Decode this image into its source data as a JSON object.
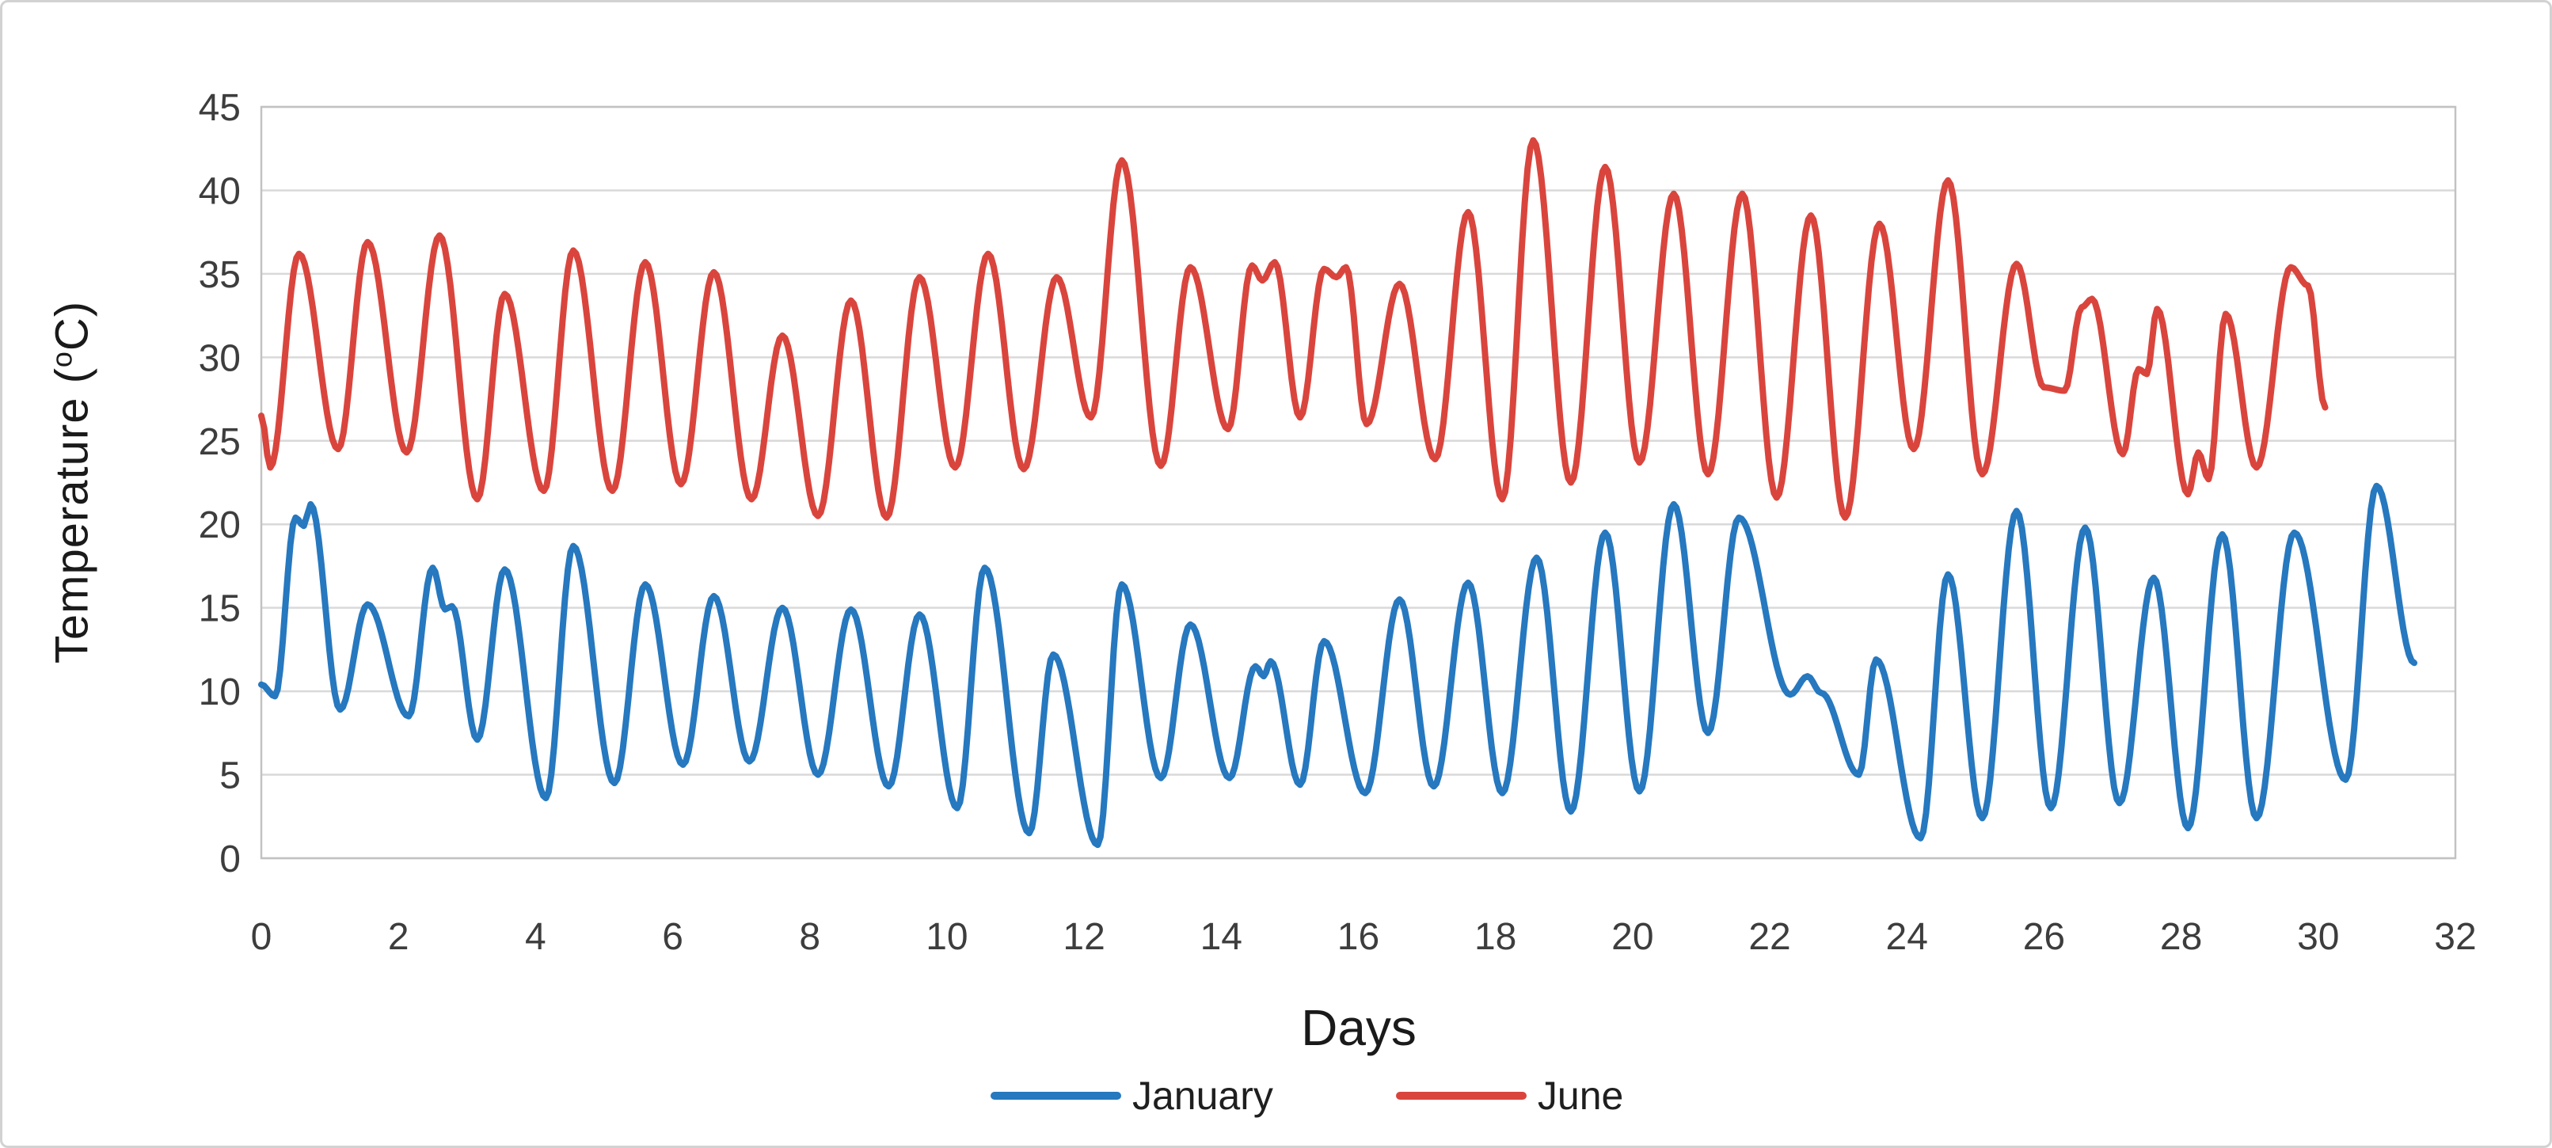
{
  "figure": {
    "background": "#ffffff",
    "border_color": "#d2d2d2",
    "grid_color": "#d9d9d9",
    "plot_border_color": "#c2c2c2",
    "tick_label_color": "#3d3d3d"
  },
  "chart_data": {
    "type": "line",
    "title": "",
    "xlabel": "Days",
    "ylabel": "Temperature (°C)",
    "ylabel_parts": {
      "prefix": "Temperature (",
      "sup": "o",
      "suffix": "C)"
    },
    "xlim": [
      0,
      32
    ],
    "ylim": [
      0,
      45
    ],
    "xticks": [
      0,
      2,
      4,
      6,
      8,
      10,
      12,
      14,
      16,
      18,
      20,
      22,
      24,
      26,
      28,
      30,
      32
    ],
    "yticks": [
      0,
      5,
      10,
      15,
      20,
      25,
      30,
      35,
      40,
      45
    ],
    "grid": "horizontal gridlines only",
    "legend_position": "bottom-center",
    "series": [
      {
        "name": "January",
        "color": "#2678bf",
        "points": [
          [
            0,
            10.4
          ],
          [
            0.2,
            9.7
          ],
          [
            0.5,
            20.4
          ],
          [
            0.62,
            19.9
          ],
          [
            0.72,
            21.2
          ],
          [
            1.15,
            8.9
          ],
          [
            1.55,
            15.2
          ],
          [
            2.15,
            8.5
          ],
          [
            2.5,
            17.4
          ],
          [
            2.68,
            14.9
          ],
          [
            2.78,
            15.1
          ],
          [
            3.15,
            7.1
          ],
          [
            3.55,
            17.3
          ],
          [
            4.15,
            3.6
          ],
          [
            4.55,
            18.7
          ],
          [
            5.15,
            4.5
          ],
          [
            5.6,
            16.4
          ],
          [
            6.15,
            5.6
          ],
          [
            6.6,
            15.7
          ],
          [
            7.12,
            5.8
          ],
          [
            7.6,
            15.0
          ],
          [
            8.12,
            5.0
          ],
          [
            8.6,
            14.9
          ],
          [
            9.15,
            4.3
          ],
          [
            9.6,
            14.6
          ],
          [
            10.15,
            3.0
          ],
          [
            10.55,
            17.4
          ],
          [
            11.2,
            1.5
          ],
          [
            11.55,
            12.2
          ],
          [
            12.2,
            0.8
          ],
          [
            12.55,
            16.4
          ],
          [
            13.12,
            4.8
          ],
          [
            13.55,
            14.0
          ],
          [
            14.12,
            4.8
          ],
          [
            14.5,
            11.5
          ],
          [
            14.62,
            10.9
          ],
          [
            14.72,
            11.8
          ],
          [
            15.15,
            4.4
          ],
          [
            15.5,
            13.0
          ],
          [
            16.1,
            3.9
          ],
          [
            16.6,
            15.5
          ],
          [
            17.1,
            4.3
          ],
          [
            17.6,
            16.5
          ],
          [
            18.1,
            3.9
          ],
          [
            18.6,
            18.0
          ],
          [
            19.1,
            2.8
          ],
          [
            19.6,
            19.5
          ],
          [
            20.1,
            4.0
          ],
          [
            20.6,
            21.2
          ],
          [
            21.1,
            7.5
          ],
          [
            21.55,
            20.4
          ],
          [
            22.3,
            9.8
          ],
          [
            22.55,
            10.9
          ],
          [
            22.75,
            9.9
          ],
          [
            23.3,
            5.0
          ],
          [
            23.55,
            11.9
          ],
          [
            24.2,
            1.2
          ],
          [
            24.6,
            17.0
          ],
          [
            25.1,
            2.4
          ],
          [
            25.6,
            20.8
          ],
          [
            26.1,
            3.0
          ],
          [
            26.6,
            19.8
          ],
          [
            27.1,
            3.3
          ],
          [
            27.6,
            16.8
          ],
          [
            28.1,
            1.8
          ],
          [
            28.6,
            19.4
          ],
          [
            29.1,
            2.4
          ],
          [
            29.65,
            19.5
          ],
          [
            30.4,
            4.7
          ],
          [
            30.85,
            22.3
          ],
          [
            31.4,
            11.7
          ]
        ]
      },
      {
        "name": "June",
        "color": "#d9453d",
        "points": [
          [
            0,
            26.5
          ],
          [
            0.13,
            23.4
          ],
          [
            0.55,
            36.2
          ],
          [
            1.12,
            24.5
          ],
          [
            1.55,
            36.9
          ],
          [
            2.12,
            24.3
          ],
          [
            2.6,
            37.3
          ],
          [
            3.15,
            21.5
          ],
          [
            3.55,
            33.8
          ],
          [
            4.12,
            22.0
          ],
          [
            4.55,
            36.4
          ],
          [
            5.12,
            22.0
          ],
          [
            5.6,
            35.7
          ],
          [
            6.12,
            22.4
          ],
          [
            6.6,
            35.1
          ],
          [
            7.15,
            21.5
          ],
          [
            7.6,
            31.3
          ],
          [
            8.12,
            20.5
          ],
          [
            8.6,
            33.4
          ],
          [
            9.12,
            20.4
          ],
          [
            9.6,
            34.8
          ],
          [
            10.12,
            23.4
          ],
          [
            10.6,
            36.2
          ],
          [
            11.12,
            23.3
          ],
          [
            11.6,
            34.8
          ],
          [
            12.1,
            26.4
          ],
          [
            12.55,
            41.8
          ],
          [
            13.12,
            23.5
          ],
          [
            13.55,
            35.4
          ],
          [
            14.1,
            25.7
          ],
          [
            14.45,
            35.5
          ],
          [
            14.6,
            34.6
          ],
          [
            14.78,
            35.7
          ],
          [
            15.15,
            26.4
          ],
          [
            15.5,
            35.3
          ],
          [
            15.68,
            34.8
          ],
          [
            15.82,
            35.4
          ],
          [
            16.12,
            26.0
          ],
          [
            16.6,
            34.4
          ],
          [
            17.12,
            23.9
          ],
          [
            17.6,
            38.7
          ],
          [
            18.1,
            21.5
          ],
          [
            18.55,
            43.0
          ],
          [
            19.1,
            22.5
          ],
          [
            19.6,
            41.4
          ],
          [
            20.1,
            23.7
          ],
          [
            20.6,
            39.8
          ],
          [
            21.1,
            23.0
          ],
          [
            21.6,
            39.8
          ],
          [
            22.1,
            21.6
          ],
          [
            22.6,
            38.5
          ],
          [
            23.1,
            20.4
          ],
          [
            23.6,
            38.0
          ],
          [
            24.1,
            24.5
          ],
          [
            24.6,
            40.6
          ],
          [
            25.1,
            23.0
          ],
          [
            25.6,
            35.6
          ],
          [
            26.0,
            28.2
          ],
          [
            26.3,
            28.0
          ],
          [
            26.55,
            33.0
          ],
          [
            26.7,
            33.5
          ],
          [
            27.15,
            24.2
          ],
          [
            27.38,
            29.3
          ],
          [
            27.5,
            29.0
          ],
          [
            27.65,
            32.9
          ],
          [
            28.1,
            21.8
          ],
          [
            28.25,
            24.3
          ],
          [
            28.4,
            22.7
          ],
          [
            28.65,
            32.6
          ],
          [
            29.1,
            23.4
          ],
          [
            29.6,
            35.4
          ],
          [
            29.85,
            34.3
          ],
          [
            30.1,
            27.0
          ]
        ]
      }
    ]
  }
}
